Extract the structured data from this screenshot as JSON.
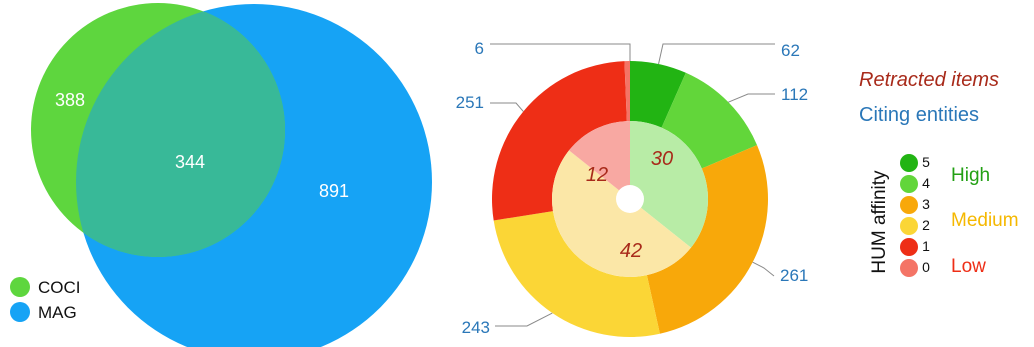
{
  "chart_data": [
    {
      "type": "venn",
      "sets": [
        {
          "name": "COCI",
          "only": 388,
          "color": "#5ED63E"
        },
        {
          "name": "MAG",
          "only": 891,
          "color": "#16A3F5"
        }
      ],
      "intersection": 344,
      "intersection_color": "#38B998",
      "legend": {
        "items": [
          {
            "label": "COCI",
            "color": "#5ED63E"
          },
          {
            "label": "MAG",
            "color": "#16A3F5"
          }
        ],
        "placement": "bottom-left"
      }
    },
    {
      "type": "pie",
      "variant": "nested-donut",
      "outer_ring": {
        "series": "Citing entities",
        "label_color": "#2A77B8",
        "slices": [
          {
            "affinity": 5,
            "value": 62,
            "color": "#22B413"
          },
          {
            "affinity": 4,
            "value": 112,
            "color": "#62D63A"
          },
          {
            "affinity": 3,
            "value": 261,
            "color": "#F8A80A"
          },
          {
            "affinity": 2,
            "value": 243,
            "color": "#FBD636"
          },
          {
            "affinity": 1,
            "value": 251,
            "color": "#EE2E16"
          },
          {
            "affinity": 0,
            "value": 6,
            "color": "#F47466"
          }
        ]
      },
      "inner_ring": {
        "series": "Retracted items",
        "label_color": "#A82A1A",
        "slices": [
          {
            "group": "High",
            "value": 30,
            "color": "#B8ECA6"
          },
          {
            "group": "Medium",
            "value": 42,
            "color": "#FBE7A7"
          },
          {
            "group": "Low",
            "value": 12,
            "color": "#F8A8A2"
          }
        ]
      },
      "legend": {
        "series_labels": [
          {
            "label": "Retracted items",
            "color": "#A82A1A",
            "italic": true
          },
          {
            "label": "Citing entities",
            "color": "#2A77B8",
            "italic": false
          }
        ],
        "scale_title": "HUM affinity",
        "levels": [
          {
            "value": "5",
            "color": "#22B413"
          },
          {
            "value": "4",
            "color": "#62D63A"
          },
          {
            "value": "3",
            "color": "#F8A80A"
          },
          {
            "value": "2",
            "color": "#FBD636"
          },
          {
            "value": "1",
            "color": "#EE2E16"
          },
          {
            "value": "0",
            "color": "#F47466"
          }
        ],
        "groups": [
          {
            "label": "High",
            "color": "#22A013"
          },
          {
            "label": "Medium",
            "color": "#F5B800"
          },
          {
            "label": "Low",
            "color": "#EE2E16"
          }
        ],
        "placement": "right"
      }
    }
  ]
}
